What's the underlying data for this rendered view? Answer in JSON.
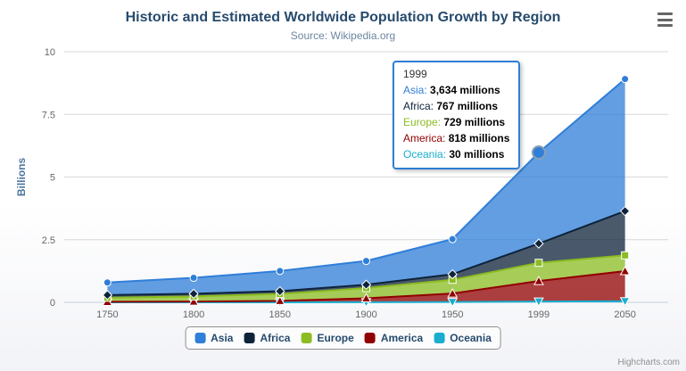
{
  "chart_data": {
    "type": "area",
    "stacking": "normal",
    "title": "Historic and Estimated Worldwide Population Growth by Region",
    "subtitle": "Source: Wikipedia.org",
    "categories": [
      "1750",
      "1800",
      "1850",
      "1900",
      "1950",
      "1999",
      "2050"
    ],
    "unit": "millions",
    "series": [
      {
        "name": "Asia",
        "color": "#2f7ed8",
        "marker": "circle",
        "values": [
          502,
          635,
          809,
          947,
          1402,
          3634,
          5268
        ]
      },
      {
        "name": "Africa",
        "color": "#0d233a",
        "marker": "diamond",
        "values": [
          106,
          107,
          111,
          133,
          221,
          767,
          1766
        ]
      },
      {
        "name": "Europe",
        "color": "#8bbc21",
        "marker": "square",
        "values": [
          163,
          203,
          276,
          408,
          547,
          729,
          628
        ]
      },
      {
        "name": "America",
        "color": "#910000",
        "marker": "triangle",
        "values": [
          18,
          31,
          54,
          156,
          339,
          818,
          1201
        ]
      },
      {
        "name": "Oceania",
        "color": "#1aadce",
        "marker": "triangle-down",
        "values": [
          2,
          2,
          2,
          6,
          13,
          30,
          46
        ]
      }
    ],
    "stack_order_bottom_to_top": [
      "Oceania",
      "America",
      "Europe",
      "Africa",
      "Asia"
    ],
    "ylabel": "Billions",
    "ylim": [
      0,
      10
    ],
    "yticks": [
      "0",
      "2.5",
      "5",
      "7.5",
      "10"
    ],
    "grid": true,
    "legend_position": "bottom"
  },
  "tooltip": {
    "header": "1999",
    "border_color": "#2f7ed8",
    "rows": [
      {
        "label": "Asia",
        "value": "3,634 millions"
      },
      {
        "label": "Africa",
        "value": "767 millions"
      },
      {
        "label": "Europe",
        "value": "729 millions"
      },
      {
        "label": "America",
        "value": "818 millions"
      },
      {
        "label": "Oceania",
        "value": "30 millions"
      }
    ]
  },
  "hover_point": {
    "series": "Asia",
    "category": "1999"
  },
  "credits": "Highcharts.com",
  "colors": {
    "title": "#274b6d",
    "subtitle": "#6d869f",
    "axis_label": "#666666",
    "axis_title": "#4d759e",
    "grid": "#d8d8d8",
    "axis_line": "#c0d0e0",
    "hover_ring": "#89a0b5"
  }
}
